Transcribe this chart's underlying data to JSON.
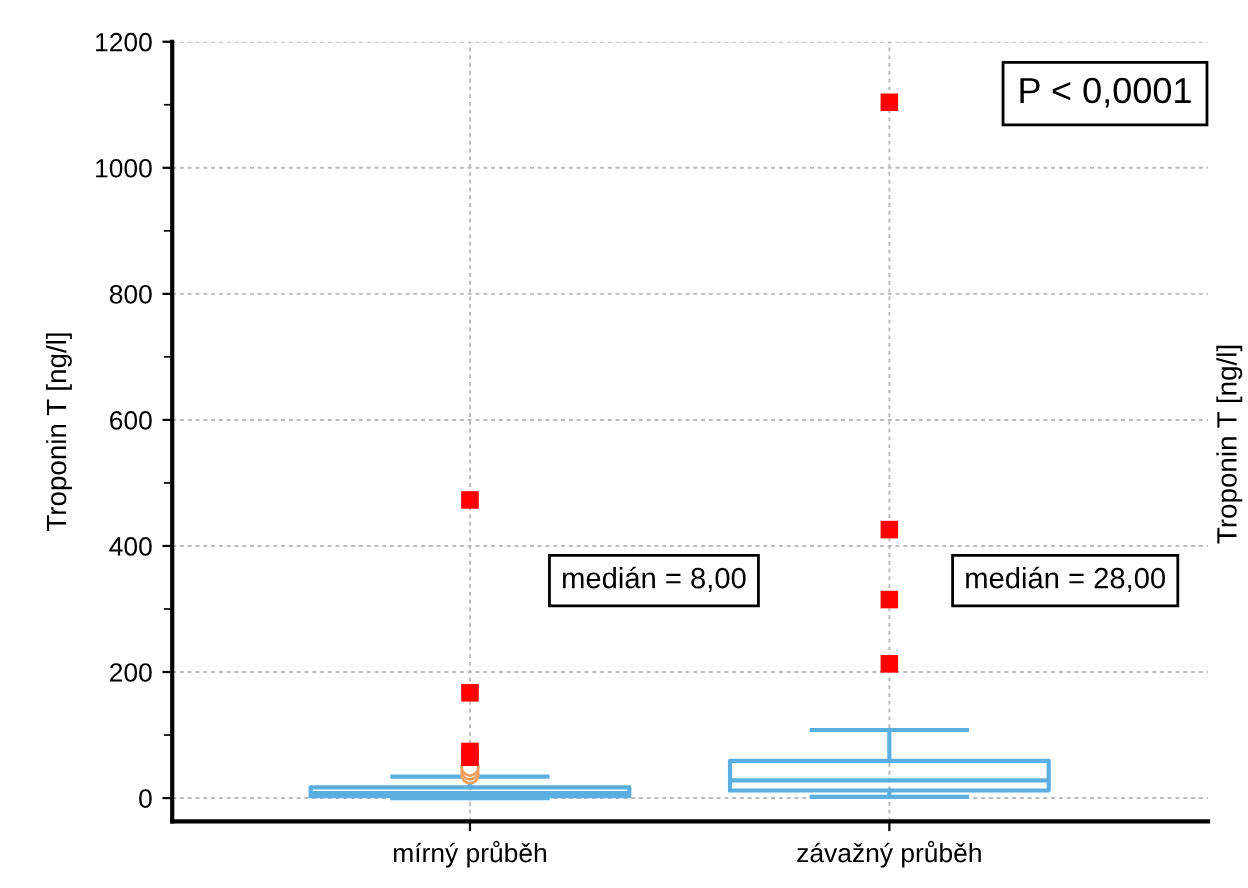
{
  "chart_data": {
    "type": "box",
    "ylabel": "Troponin T [ng/l]",
    "y2label": "Troponin T [ng/l]",
    "categories": [
      "mírný průběh",
      "závažný průběh"
    ],
    "ylim": [
      -37,
      1200
    ],
    "yticks": [
      0,
      200,
      400,
      600,
      800,
      1000,
      1200,
      {
        "value": 100,
        "label": null
      },
      {
        "value": 300,
        "label": null
      },
      {
        "value": 500,
        "label": null
      },
      {
        "value": 700,
        "label": null
      },
      {
        "value": 900,
        "label": null
      },
      {
        "value": 1100,
        "label": null
      }
    ],
    "grid": true,
    "legend": false,
    "series": [
      {
        "color": "#5aaee0",
        "boxes": [
          {
            "low": 0,
            "q1": 3,
            "median": 8,
            "q3": 17,
            "high": 34,
            "outliers": [
              37,
              43,
              49
            ]
          },
          {
            "low": 2,
            "q1": 12,
            "median": 28,
            "q3": 59,
            "high": 108
          }
        ]
      },
      {
        "type": "scatter",
        "color": "#ff0000",
        "marker": "square",
        "x": [
          "mírný průběh",
          "mírný průběh",
          "mírný průběh",
          "mírný průběh",
          "závažný průběh",
          "závažný průběh",
          "závažný průběh",
          "závažný průběh"
        ],
        "values": [
          473,
          167,
          65,
          74,
          1104,
          426,
          315,
          213
        ]
      }
    ],
    "annotations": [
      "P < 0,0001",
      "medián = 8,00",
      "medián = 28,00"
    ]
  }
}
